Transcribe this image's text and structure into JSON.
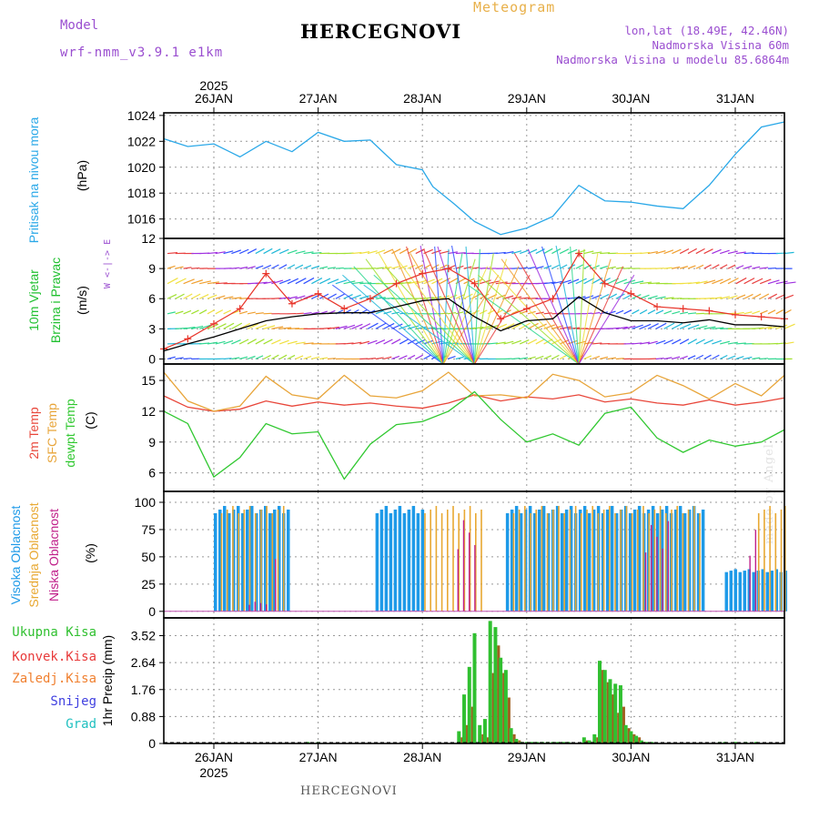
{
  "header": {
    "title": "HERCEGNOVI",
    "meteogram": "Meteogram",
    "model_label": "Model",
    "model_name": "wrf-nmm_v3.9.1 e1km",
    "lonlat": "lon,lat (18.49E, 42.46N)",
    "elevation": "Nadmorska Visina 60m",
    "model_elevation": "Nadmorska Visina u modelu 85.6864m"
  },
  "footer": {
    "title": "HERCEGNOVI",
    "credit": "made by Angel"
  },
  "colors": {
    "pressure": "#2aa8e8",
    "wind_speed": "#000000",
    "gust": "#e8352a",
    "t2m": "#e8463a",
    "sfc": "#e8a53a",
    "dewpt": "#30c830",
    "high_cloud": "#1e9ae8",
    "mid_cloud": "#e8a832",
    "low_cloud": "#c0208a",
    "precip_total": "#30c030",
    "precip_conv": "#e83a3a",
    "freezing": "#f08030",
    "snow": "#4040e0",
    "hail": "#20c0c0",
    "frame": "#000000"
  },
  "chart_data": [
    {
      "type": "line",
      "panel": "pressure",
      "ylabel_lines": [
        "Pritisak na nivou mora",
        "(hPa)"
      ],
      "yticks": [
        1016,
        1018,
        1020,
        1022,
        1024
      ],
      "ylim": [
        1014.5,
        1024.2
      ],
      "x_days": [
        "26JAN",
        "27JAN",
        "28JAN",
        "29JAN",
        "30JAN",
        "31JAN"
      ],
      "year": "2025",
      "x_unit": "days from 2025-01-25 12 UTC",
      "x": [
        0,
        0.25,
        0.5,
        0.75,
        1,
        1.25,
        1.5,
        1.75,
        2,
        2.25,
        2.5,
        2.6,
        2.8,
        3,
        3.25,
        3.5,
        3.75,
        4,
        4.25,
        4.5,
        4.75,
        5,
        5.25,
        5.5,
        5.75,
        6
      ],
      "series": [
        {
          "values": [
            1022.2,
            1021.6,
            1021.8,
            1020.8,
            1022.0,
            1021.2,
            1022.7,
            1022.0,
            1022.1,
            1020.2,
            1019.8,
            1018.5,
            1017.2,
            1015.8,
            1014.8,
            1015.3,
            1016.2,
            1018.6,
            1017.4,
            1017.3,
            1017.0,
            1016.8,
            1018.6,
            1021.0,
            1023.1,
            1023.5
          ]
        }
      ]
    },
    {
      "type": "line",
      "panel": "wind",
      "ylabel_lines": [
        "10m Vjetar",
        "Brzina i Pravac",
        "(m/s)"
      ],
      "compass": "W <-|-> E",
      "yticks": [
        0,
        3,
        6,
        9,
        12
      ],
      "ylim": [
        -0.5,
        12
      ],
      "x": [
        0,
        0.25,
        0.5,
        0.75,
        1,
        1.25,
        1.5,
        1.75,
        2,
        2.25,
        2.5,
        2.75,
        3,
        3.25,
        3.5,
        3.75,
        4,
        4.25,
        4.5,
        4.75,
        5,
        5.25,
        5.5,
        5.75,
        6
      ],
      "series": [
        {
          "name": "wind",
          "values": [
            0.8,
            1.5,
            2.2,
            3.0,
            3.8,
            4.2,
            4.5,
            4.6,
            4.6,
            5.2,
            5.8,
            6.0,
            4.2,
            2.8,
            3.8,
            4.0,
            6.2,
            4.6,
            3.8,
            3.8,
            3.6,
            3.9,
            3.4,
            3.4,
            3.2
          ]
        },
        {
          "name": "gust",
          "values": [
            1.0,
            2.0,
            3.5,
            5.0,
            8.5,
            5.5,
            6.5,
            5.0,
            6.0,
            7.5,
            8.5,
            9.0,
            7.5,
            4.0,
            5.0,
            6.0,
            10.5,
            7.5,
            6.5,
            5.2,
            5.0,
            4.8,
            4.4,
            4.2,
            4.0
          ]
        }
      ],
      "arrow_levels": [
        {
          "level": 0.0,
          "color_start": "#3060ff"
        },
        {
          "level": 1.5,
          "color_start": "#20c0c0"
        },
        {
          "level": 3.0,
          "color_start": "#40e0a0"
        },
        {
          "level": 4.5,
          "color_start": "#f0e040"
        },
        {
          "level": 6.0,
          "color_start": "#f08030"
        },
        {
          "level": 7.5,
          "color_start": "#e84040"
        },
        {
          "level": 9.0,
          "color_start": "#9030e0"
        },
        {
          "level": 10.5,
          "color_start": "#6020c0"
        }
      ]
    },
    {
      "type": "line",
      "panel": "temperature",
      "ylabel_lines": [
        "2m Temp",
        "SFC Temp",
        "dewpt Temp",
        "(C)"
      ],
      "yticks": [
        6,
        9,
        12,
        15
      ],
      "ylim": [
        4.2,
        16.6
      ],
      "x": [
        0,
        0.25,
        0.5,
        0.75,
        1,
        1.25,
        1.5,
        1.75,
        2,
        2.25,
        2.5,
        2.75,
        3,
        3.25,
        3.5,
        3.75,
        4,
        4.25,
        4.5,
        4.75,
        5,
        5.25,
        5.5,
        5.75,
        6
      ],
      "series": [
        {
          "name": "2m Temp",
          "values": [
            13.5,
            12.4,
            12.0,
            12.2,
            13.0,
            12.5,
            12.9,
            12.6,
            12.8,
            12.5,
            12.3,
            12.8,
            13.6,
            13.0,
            13.4,
            13.2,
            13.6,
            12.9,
            13.2,
            12.8,
            12.6,
            13.1,
            12.6,
            12.9,
            13.3
          ]
        },
        {
          "name": "SFC Temp",
          "values": [
            15.8,
            13.0,
            12.0,
            12.5,
            15.4,
            13.6,
            13.2,
            15.5,
            13.5,
            13.3,
            14.0,
            15.8,
            13.5,
            13.6,
            13.3,
            15.6,
            15.0,
            13.4,
            13.8,
            15.5,
            14.5,
            13.2,
            14.7,
            13.5,
            15.5
          ]
        },
        {
          "name": "dewpt Temp",
          "values": [
            12.0,
            10.8,
            5.6,
            7.5,
            10.8,
            9.8,
            10.0,
            5.4,
            8.8,
            10.7,
            11.0,
            12.0,
            13.9,
            11.2,
            9.0,
            9.8,
            8.7,
            11.8,
            12.4,
            9.4,
            8.0,
            9.2,
            8.6,
            9.0,
            10.2
          ]
        }
      ]
    },
    {
      "type": "bar",
      "panel": "clouds",
      "ylabel_lines": [
        "Visoka Oblacnost",
        "Srednja Oblacnost",
        "Niska Oblacnost",
        "(%)"
      ],
      "yticks": [
        0,
        25,
        50,
        75,
        100
      ],
      "ylim": [
        -6,
        110
      ],
      "series": [
        {
          "name": "Visoka Oblacnost",
          "segments": [
            [
              0.5,
              1.2,
              100
            ],
            [
              2.05,
              2.5,
              100
            ],
            [
              3.3,
              5.2,
              100
            ],
            [
              5.4,
              6.0,
              40
            ]
          ]
        },
        {
          "name": "Srednja Oblacnost",
          "segments": [
            [
              0.55,
              1.2,
              100
            ],
            [
              2.5,
              3.1,
              100
            ],
            [
              3.35,
              5.2,
              100
            ],
            [
              5.7,
              6.0,
              100
            ]
          ]
        },
        {
          "name": "Niska Oblacnost",
          "segments": [
            [
              0.8,
              1.0,
              10
            ],
            [
              1.05,
              1.1,
              80
            ],
            [
              2.8,
              3.0,
              95
            ],
            [
              4.6,
              4.9,
              90
            ],
            [
              5.6,
              5.7,
              85
            ]
          ]
        }
      ]
    },
    {
      "type": "bar",
      "panel": "precip",
      "ylabel_lines": [
        "Ukupna Kisa",
        "Konvek.Kisa",
        "Zaledj.Kisa",
        "Snijeg",
        "Grad",
        "1hr Precip (mm)"
      ],
      "yticks": [
        0,
        0.88,
        1.76,
        2.64,
        3.52
      ],
      "ylim": [
        0,
        4.1
      ],
      "x": [
        1.4,
        1.5,
        2.85,
        2.9,
        2.95,
        3.0,
        3.05,
        3.1,
        3.15,
        3.2,
        3.25,
        3.3,
        3.35,
        3.4,
        3.45,
        3.5,
        3.55,
        3.6,
        3.65,
        3.7,
        3.75,
        3.8,
        3.85,
        3.9,
        4.05,
        4.1,
        4.15,
        4.2,
        4.25,
        4.3,
        4.35,
        4.4,
        4.45,
        4.5,
        4.55,
        4.6,
        4.65,
        4.7,
        5.35,
        5.4,
        5.5,
        5.6,
        5.7
      ],
      "series": [
        {
          "name": "Ukupna Kisa",
          "values": [
            0.05,
            0.05,
            0.4,
            1.6,
            2.5,
            3.6,
            0.6,
            0.8,
            4.0,
            3.8,
            2.8,
            2.4,
            0.5,
            0.15,
            0.05,
            0.05,
            0.05,
            0.05,
            0.05,
            0.05,
            0.05,
            0.05,
            0.05,
            0.05,
            0.2,
            0.1,
            0.3,
            2.7,
            2.4,
            2.1,
            1.95,
            1.9,
            0.6,
            0.4,
            0.25,
            0.1,
            0.05,
            0.05,
            0.05,
            0.05,
            0.05,
            0.05,
            0.05
          ]
        },
        {
          "name": "Konvek.Kisa",
          "values": [
            0,
            0,
            0.2,
            0.6,
            1.2,
            0.0,
            0.3,
            0.2,
            2.3,
            3.2,
            2.3,
            1.5,
            0.3,
            0.1,
            0,
            0,
            0,
            0,
            0,
            0,
            0,
            0,
            0,
            0,
            0.1,
            0.05,
            0.2,
            2.4,
            2.0,
            1.6,
            1.0,
            1.2,
            0.5,
            0.3,
            0.2,
            0.05,
            0,
            0,
            0,
            0,
            0,
            0,
            0
          ]
        }
      ]
    }
  ]
}
